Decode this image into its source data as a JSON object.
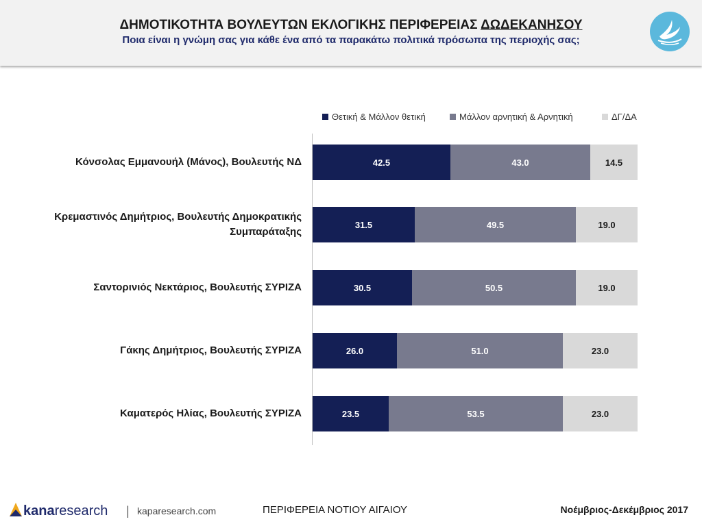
{
  "header": {
    "title_main": "ΔΗΜΟΤΙΚΟΤΗΤΑ ΒΟΥΛΕΥΤΩΝ ΕΚΛΟΓΙΚΗΣ ΠΕΡΙΦΕΡΕΙΑΣ",
    "title_region": "ΔΩΔΕΚΑΝΗΣΟΥ",
    "subtitle": "Ποια είναι η γνώμη σας για κάθε ένα από τα παρακάτω πολιτικά πρόσωπα της περιοχής σας;"
  },
  "chart_data": {
    "type": "bar",
    "orientation": "horizontal",
    "stacked": true,
    "categories": [
      "Κόνσολας Εμμανουήλ (Μάνος), Βουλευτής ΝΔ",
      "Κρεμαστινός Δημήτριος, Βουλευτής Δημοκρατικής Συμπαράταξης",
      "Σαντορινιός Νεκτάριος, Βουλευτής ΣΥΡΙΖΑ",
      "Γάκης Δημήτριος, Βουλευτής ΣΥΡΙΖΑ",
      "Καματερός Ηλίας, Βουλευτής ΣΥΡΙΖΑ"
    ],
    "series": [
      {
        "name": "Θετική & Μάλλον θετική",
        "color": "#141f55",
        "values": [
          42.5,
          31.5,
          30.5,
          26.0,
          23.5
        ]
      },
      {
        "name": "Μάλλον αρνητική & Αρνητική",
        "color": "#787a8e",
        "values": [
          43.0,
          49.5,
          50.5,
          51.0,
          53.5
        ]
      },
      {
        "name": "ΔΓ/ΔΑ",
        "color": "#d9d9d9",
        "values": [
          14.5,
          19.0,
          19.0,
          23.0,
          23.0
        ]
      }
    ],
    "xlim": [
      0,
      100
    ],
    "legend_position": "top-right",
    "grid": false
  },
  "footer": {
    "brand_bold": "kana",
    "brand_light": "research",
    "separator": "|",
    "website": "kaparesearch.com",
    "region": "ΠΕΡΙΦΕΡΕΙΑ ΝΟΤΙΟΥ ΑΙΓΑΙΟΥ",
    "date": "Νοέμβριος-Δεκέμβριος 2017"
  }
}
